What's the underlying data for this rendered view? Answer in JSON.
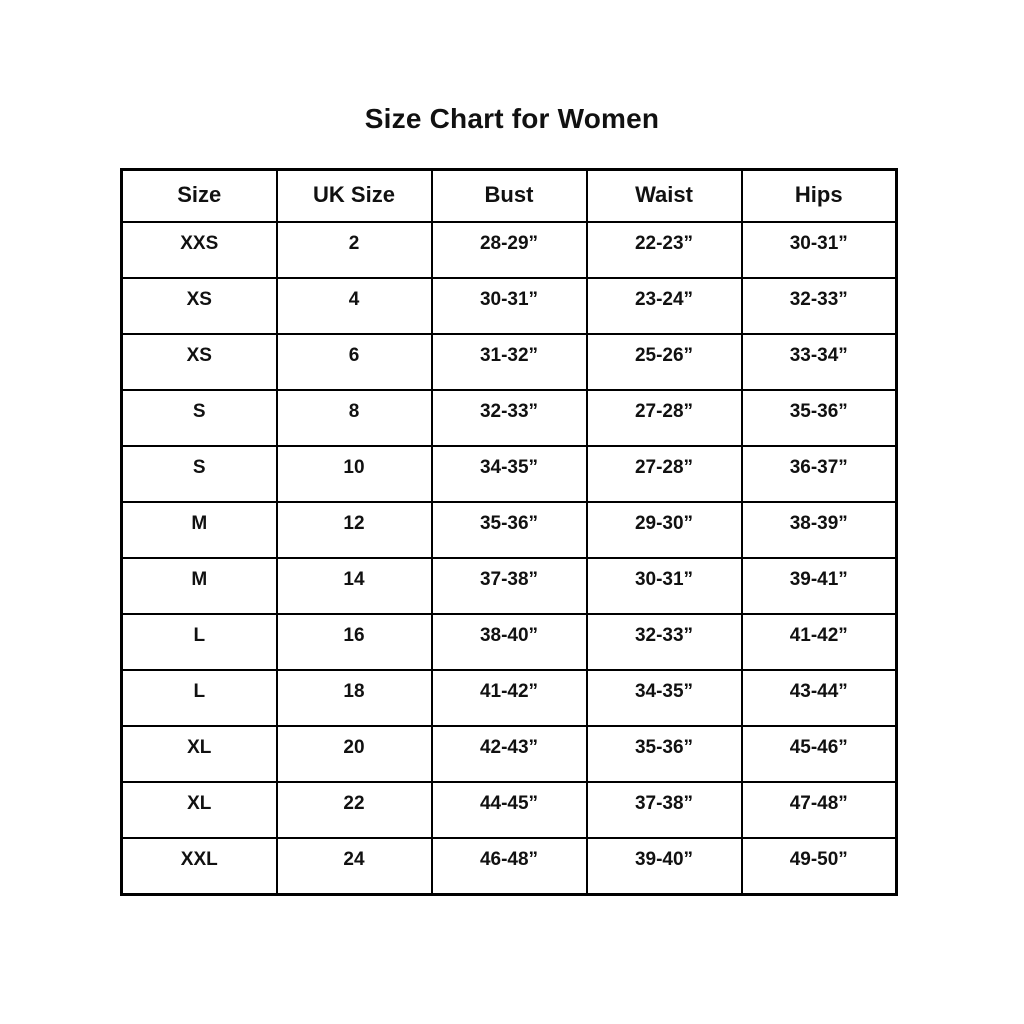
{
  "title": "Size Chart for Women",
  "colors": {
    "background": "#ffffff",
    "text": "#111111",
    "border": "#000000"
  },
  "chart_data": {
    "type": "table",
    "title": "Size Chart for Women",
    "columns": [
      "Size",
      "UK Size",
      "Bust",
      "Waist",
      "Hips"
    ],
    "rows": [
      [
        "XXS",
        "2",
        "28-29”",
        "22-23”",
        "30-31”"
      ],
      [
        "XS",
        "4",
        "30-31”",
        "23-24”",
        "32-33”"
      ],
      [
        "XS",
        "6",
        "31-32”",
        "25-26”",
        "33-34”"
      ],
      [
        "S",
        "8",
        "32-33”",
        "27-28”",
        "35-36”"
      ],
      [
        "S",
        "10",
        "34-35”",
        "27-28”",
        "36-37”"
      ],
      [
        "M",
        "12",
        "35-36”",
        "29-30”",
        "38-39”"
      ],
      [
        "M",
        "14",
        "37-38”",
        "30-31”",
        "39-41”"
      ],
      [
        "L",
        "16",
        "38-40”",
        "32-33”",
        "41-42”"
      ],
      [
        "L",
        "18",
        "41-42”",
        "34-35”",
        "43-44”"
      ],
      [
        "XL",
        "20",
        "42-43”",
        "35-36”",
        "45-46”"
      ],
      [
        "XL",
        "22",
        "44-45”",
        "37-38”",
        "47-48”"
      ],
      [
        "XXL",
        "24",
        "46-48”",
        "39-40”",
        "49-50”"
      ]
    ],
    "layout": {
      "grid": true,
      "text_align": "center",
      "font_weight": "bold"
    }
  }
}
